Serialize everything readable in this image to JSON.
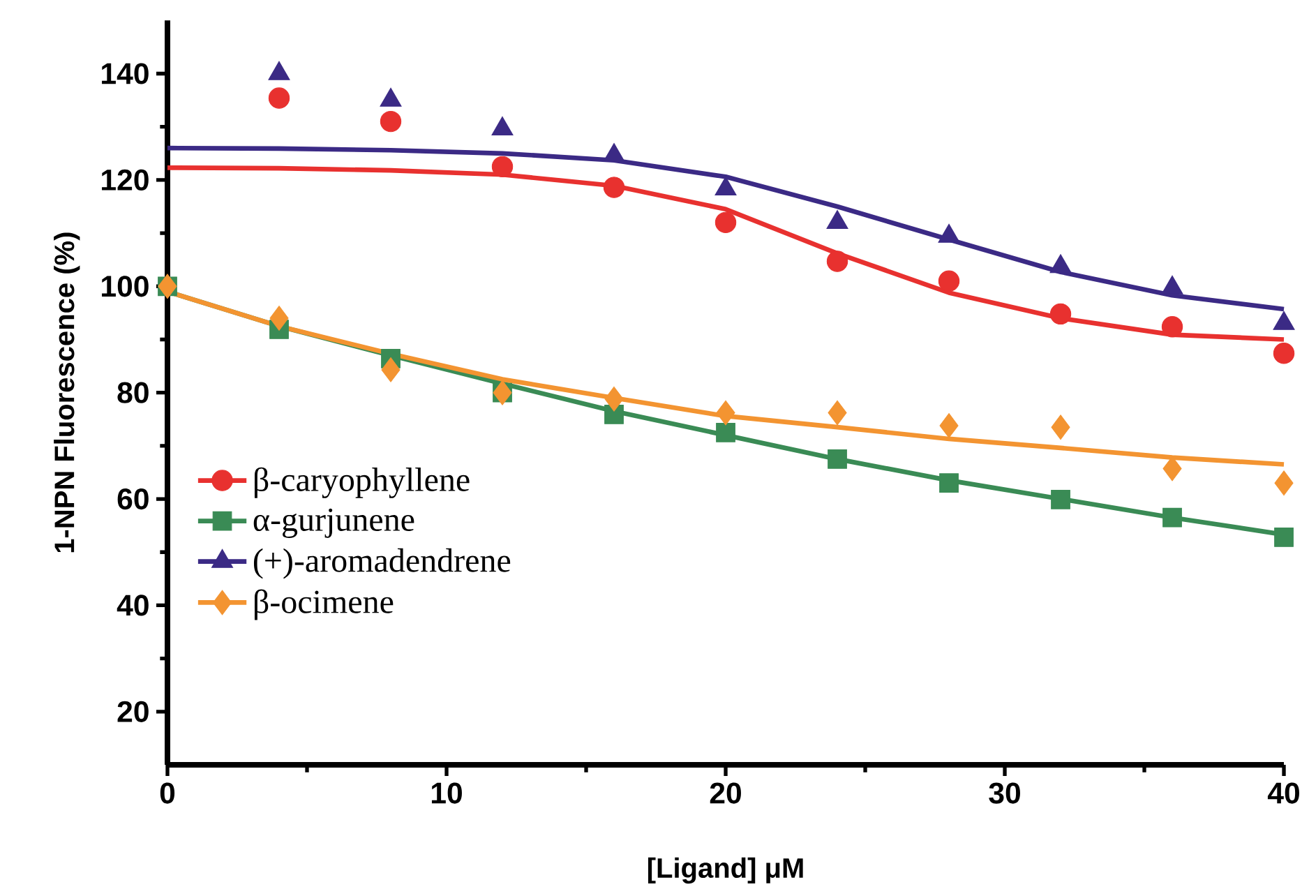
{
  "chart_data": {
    "type": "scatter",
    "xlabel": "[Ligand] μM",
    "ylabel": "1-NPN Fluorescence (%)",
    "xlim": [
      0,
      40
    ],
    "xticks": [
      0,
      10,
      20,
      30,
      40
    ],
    "ylim": [
      10,
      150
    ],
    "yticks": [
      20,
      40,
      60,
      80,
      100,
      120,
      140
    ],
    "grid": false,
    "legend": "left",
    "series": [
      {
        "name": "β-caryophyllene",
        "color": "#e8312f",
        "marker": "circle",
        "x": [
          4,
          8,
          12,
          16,
          20,
          24,
          28,
          32,
          36,
          40
        ],
        "values": [
          135.4,
          131,
          122.5,
          118.6,
          112,
          104.7,
          101,
          94.8,
          92.4,
          87.4
        ]
      },
      {
        "name": "α-gurjunene",
        "color": "#3a8b55",
        "marker": "square",
        "x": [
          0,
          4,
          8,
          12,
          16,
          20,
          24,
          28,
          32,
          36,
          40
        ],
        "values": [
          100,
          91.9,
          86.4,
          80,
          75.9,
          72.5,
          67.5,
          63,
          59.9,
          56.5,
          52.8
        ]
      },
      {
        "name": "(+)-aromadendrene",
        "color": "#3b2a85",
        "marker": "triangle",
        "x": [
          4,
          8,
          12,
          16,
          20,
          24,
          28,
          32,
          36,
          40
        ],
        "values": [
          140,
          135,
          129.6,
          124.6,
          118.3,
          112,
          109.4,
          103.7,
          99.7,
          93
        ]
      },
      {
        "name": "β-ocimene",
        "color": "#f39431",
        "marker": "diamond",
        "x": [
          0,
          4,
          8,
          12,
          16,
          20,
          24,
          28,
          32,
          36,
          40
        ],
        "values": [
          100,
          94,
          84.3,
          80,
          78.8,
          76.2,
          76.2,
          73.8,
          73.5,
          65.7,
          63
        ]
      },
      {
        "type": "line",
        "color": "#e8312f",
        "x": [
          0,
          4,
          8,
          12,
          16,
          20,
          24,
          28,
          32,
          36,
          40
        ],
        "values": [
          122.3,
          122.2,
          121.8,
          121,
          118.9,
          114.5,
          106.2,
          98.8,
          94,
          90.9,
          90
        ]
      },
      {
        "type": "line",
        "color": "#3a8b55",
        "x": [
          0,
          4,
          8,
          12,
          16,
          20,
          24,
          28,
          32,
          36,
          40
        ],
        "values": [
          99,
          92.5,
          87,
          81.7,
          76.5,
          72,
          67.5,
          63.5,
          60,
          56.5,
          53.3
        ]
      },
      {
        "type": "line",
        "color": "#3b2a85",
        "x": [
          0,
          4,
          8,
          12,
          16,
          20,
          24,
          28,
          32,
          36,
          40
        ],
        "values": [
          126,
          125.9,
          125.6,
          125,
          123.7,
          120.6,
          115,
          108.8,
          102.7,
          98.3,
          95.7
        ]
      },
      {
        "type": "line",
        "color": "#f39431",
        "x": [
          0,
          4,
          8,
          12,
          16,
          20,
          24,
          28,
          32,
          36,
          40
        ],
        "values": [
          99,
          92.5,
          87.3,
          82.5,
          79,
          75.6,
          73.5,
          71.3,
          69.6,
          67.8,
          66.5
        ]
      }
    ]
  }
}
